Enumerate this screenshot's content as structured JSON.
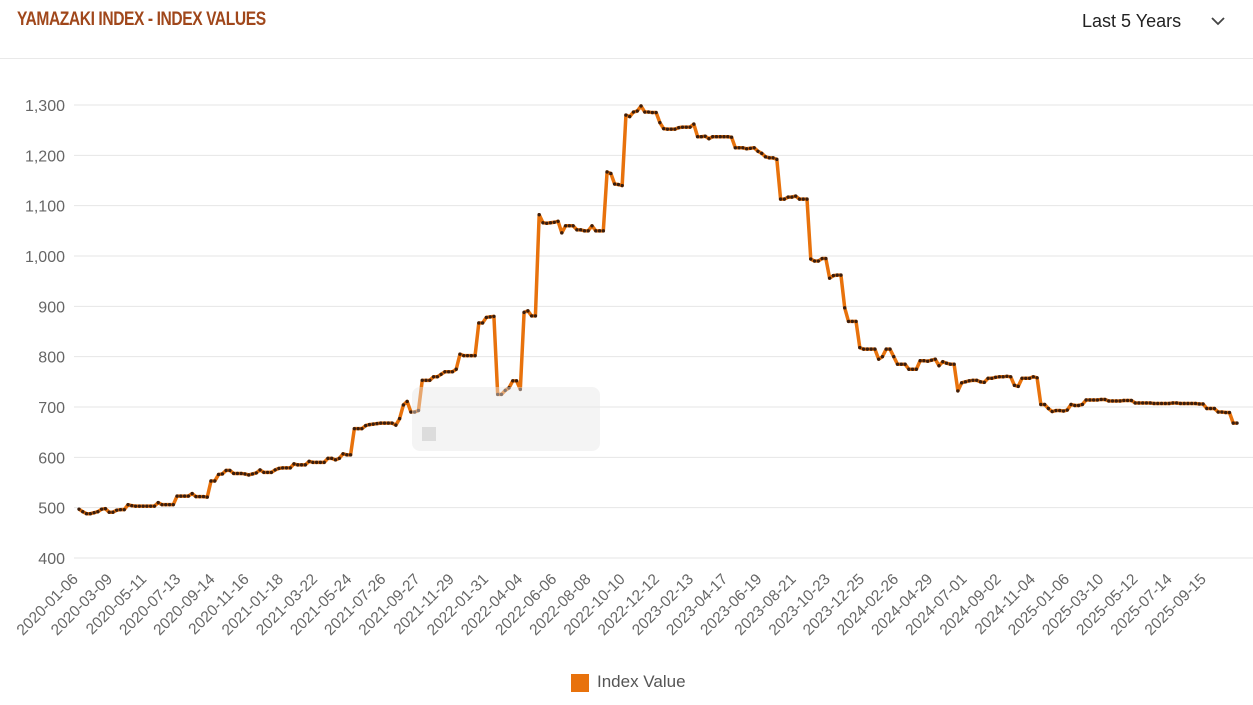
{
  "header": {
    "title": "YAMAZAKI INDEX - INDEX VALUES",
    "range_label": "Last 5 Years",
    "range_icon": "chevron-down-icon"
  },
  "legend": {
    "label": "Index Value",
    "color": "#e8720c"
  },
  "colors": {
    "line": "#e8720c",
    "marker": "#3b1d0c",
    "grid": "#e6e6e6",
    "axis_text": "#666666",
    "title": "#a0471b"
  },
  "chart_data": {
    "type": "line",
    "title": "YAMAZAKI INDEX - INDEX VALUES",
    "xlabel": "",
    "ylabel": "",
    "ylim": [
      400,
      1300
    ],
    "yticks": [
      400,
      500,
      600,
      700,
      800,
      900,
      1000,
      1100,
      1200,
      1300
    ],
    "ytick_labels": [
      "400",
      "500",
      "600",
      "700",
      "800",
      "900",
      "1,000",
      "1,100",
      "1,200",
      "1,300"
    ],
    "xtick_labels": [
      "2020-01-06",
      "2020-03-09",
      "2020-05-11",
      "2020-07-13",
      "2020-09-14",
      "2020-11-16",
      "2021-01-18",
      "2021-03-22",
      "2021-05-24",
      "2021-07-26",
      "2021-09-27",
      "2021-11-29",
      "2022-01-31",
      "2022-04-04",
      "2022-06-06",
      "2022-08-08",
      "2022-10-10",
      "2022-12-12",
      "2023-02-13",
      "2023-04-17",
      "2023-06-19",
      "2023-08-21",
      "2023-10-23",
      "2023-12-25",
      "2024-02-26",
      "2024-04-29",
      "2024-07-01",
      "2024-09-02",
      "2024-11-04",
      "2025-01-06",
      "2025-03-10",
      "2025-05-12",
      "2025-07-14",
      "2025-09-15"
    ],
    "grid": true,
    "legend_position": "bottom",
    "series": [
      {
        "name": "Index Value",
        "values": [
          497,
          492,
          488,
          488,
          490,
          492,
          497,
          498,
          491,
          491,
          495,
          496,
          496,
          506,
          504,
          503,
          503,
          503,
          503,
          503,
          503,
          510,
          506,
          506,
          506,
          506,
          523,
          523,
          523,
          523,
          528,
          522,
          522,
          522,
          521,
          553,
          553,
          566,
          567,
          574,
          574,
          568,
          568,
          568,
          567,
          565,
          567,
          569,
          575,
          570,
          570,
          570,
          575,
          578,
          579,
          579,
          579,
          587,
          585,
          585,
          585,
          592,
          590,
          590,
          590,
          590,
          598,
          598,
          595,
          598,
          607,
          605,
          605,
          657,
          657,
          657,
          663,
          665,
          666,
          667,
          668,
          668,
          668,
          668,
          664,
          677,
          704,
          711,
          690,
          690,
          693,
          753,
          753,
          753,
          760,
          760,
          765,
          770,
          770,
          770,
          775,
          805,
          802,
          802,
          802,
          802,
          867,
          867,
          878,
          879,
          880,
          725,
          725,
          733,
          738,
          752,
          752,
          735,
          888,
          891,
          881,
          881,
          1082,
          1066,
          1065,
          1066,
          1067,
          1069,
          1046,
          1060,
          1060,
          1060,
          1052,
          1052,
          1050,
          1050,
          1060,
          1050,
          1050,
          1050,
          1167,
          1164,
          1143,
          1142,
          1140,
          1280,
          1277,
          1286,
          1288,
          1298,
          1286,
          1286,
          1285,
          1285,
          1265,
          1253,
          1252,
          1252,
          1252,
          1255,
          1256,
          1256,
          1256,
          1262,
          1237,
          1237,
          1238,
          1233,
          1237,
          1237,
          1237,
          1237,
          1237,
          1236,
          1215,
          1215,
          1215,
          1213,
          1214,
          1215,
          1208,
          1204,
          1197,
          1195,
          1195,
          1192,
          1113,
          1113,
          1117,
          1117,
          1119,
          1113,
          1113,
          1113,
          994,
          990,
          990,
          995,
          995,
          956,
          961,
          962,
          962,
          897,
          870,
          870,
          870,
          818,
          815,
          815,
          815,
          815,
          795,
          800,
          815,
          815,
          800,
          785,
          785,
          785,
          775,
          775,
          775,
          792,
          792,
          791,
          793,
          795,
          782,
          790,
          787,
          785,
          785,
          732,
          748,
          750,
          752,
          753,
          753,
          750,
          749,
          757,
          757,
          759,
          760,
          760,
          761,
          760,
          743,
          741,
          757,
          757,
          757,
          760,
          758,
          705,
          705,
          697,
          691,
          693,
          693,
          692,
          694,
          705,
          703,
          703,
          705,
          714,
          714,
          714,
          714,
          715,
          715,
          712,
          712,
          712,
          712,
          713,
          713,
          713,
          708,
          708,
          708,
          708,
          708,
          707,
          707,
          707,
          707,
          707,
          708,
          708,
          707,
          707,
          707,
          707,
          707,
          706,
          706,
          697,
          697,
          697,
          690,
          690,
          689,
          689,
          668,
          668
        ]
      }
    ]
  }
}
